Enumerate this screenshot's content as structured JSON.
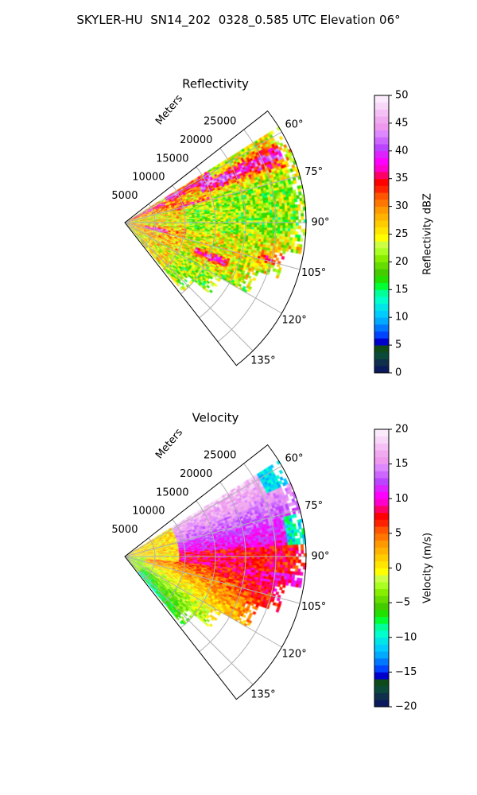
{
  "figure": {
    "suptitle": "SKYLER-HU  SN14_202  0328_0.585 UTC Elevation 06°"
  },
  "chart_data": [
    {
      "type": "heatmap",
      "subtype": "polar-sector (radar PPI)",
      "title": "Reflectivity",
      "radial_axis_label": "Meters",
      "radial_ticks": [
        5000,
        10000,
        15000,
        20000,
        25000
      ],
      "radial_tick_labels": [
        "5000",
        "10000",
        "15000",
        "20000",
        "25000"
      ],
      "angle_ticks_deg": [
        60,
        75,
        90,
        105,
        120,
        135
      ],
      "angle_tick_labels": [
        "60°",
        "75°",
        "90°",
        "105°",
        "120°",
        "135°"
      ],
      "theta_range_deg": [
        52,
        142
      ],
      "r_range_m": [
        0,
        30000
      ],
      "grid": true,
      "colorbar": {
        "label": "Reflectivity dBZ",
        "range": [
          0,
          50
        ],
        "ticks": [
          0,
          5,
          10,
          15,
          20,
          25,
          30,
          35,
          40,
          45,
          50
        ],
        "tick_labels": [
          "0",
          "5",
          "10",
          "15",
          "20",
          "25",
          "30",
          "35",
          "40",
          "45",
          "50"
        ],
        "colors": [
          "#0a1a5a",
          "#0f2f4a",
          "#0b4a3a",
          "#0f4a1a",
          "#0000cc",
          "#0044ff",
          "#0077ff",
          "#00aaff",
          "#00ccff",
          "#00e5e5",
          "#00ffcc",
          "#00ff99",
          "#00ff33",
          "#22e000",
          "#44cc00",
          "#66dd00",
          "#88ee00",
          "#aaff22",
          "#ccff44",
          "#ffff00",
          "#ffe600",
          "#ffcc00",
          "#ffb300",
          "#ff9900",
          "#ff7700",
          "#ff5500",
          "#ff2200",
          "#ff0000",
          "#ff0066",
          "#ff00cc",
          "#ff00ff",
          "#dd22ff",
          "#bb44ff",
          "#cc66ff",
          "#dd88ff",
          "#ee99ee",
          "#f0aaf0",
          "#f5c0f5",
          "#f8d8f8",
          "#fbeafb"
        ]
      }
    },
    {
      "type": "heatmap",
      "subtype": "polar-sector (radar PPI)",
      "title": "Velocity",
      "radial_axis_label": "Meters",
      "radial_ticks": [
        5000,
        10000,
        15000,
        20000,
        25000
      ],
      "radial_tick_labels": [
        "5000",
        "10000",
        "15000",
        "20000",
        "25000"
      ],
      "angle_ticks_deg": [
        60,
        75,
        90,
        105,
        120,
        135
      ],
      "angle_tick_labels": [
        "60°",
        "75°",
        "90°",
        "105°",
        "120°",
        "135°"
      ],
      "theta_range_deg": [
        52,
        142
      ],
      "r_range_m": [
        0,
        30000
      ],
      "grid": true,
      "colorbar": {
        "label": "Velocity (m/s)",
        "range": [
          -20,
          20
        ],
        "ticks": [
          -20,
          -15,
          -10,
          -5,
          0,
          5,
          10,
          15,
          20
        ],
        "tick_labels": [
          "−20",
          "−15",
          "−10",
          "−5",
          "0",
          "5",
          "10",
          "15",
          "20"
        ],
        "colors": [
          "#0a1a5a",
          "#0f2f4a",
          "#0b4a3a",
          "#0f4a1a",
          "#0000cc",
          "#0044ff",
          "#0077ff",
          "#00aaff",
          "#00ccff",
          "#00e5e5",
          "#00ffcc",
          "#00ff99",
          "#00ff33",
          "#22e000",
          "#44cc00",
          "#66dd00",
          "#88ee00",
          "#aaff22",
          "#ccff44",
          "#ffff00",
          "#ffe600",
          "#ffcc00",
          "#ffb300",
          "#ff9900",
          "#ff7700",
          "#ff5500",
          "#ff2200",
          "#ff0000",
          "#ff0066",
          "#ff00cc",
          "#ff00ff",
          "#dd22ff",
          "#bb44ff",
          "#cc66ff",
          "#dd88ff",
          "#ee99ee",
          "#f0aaf0",
          "#f5c0f5",
          "#f8d8f8",
          "#fbeafb"
        ]
      }
    }
  ]
}
